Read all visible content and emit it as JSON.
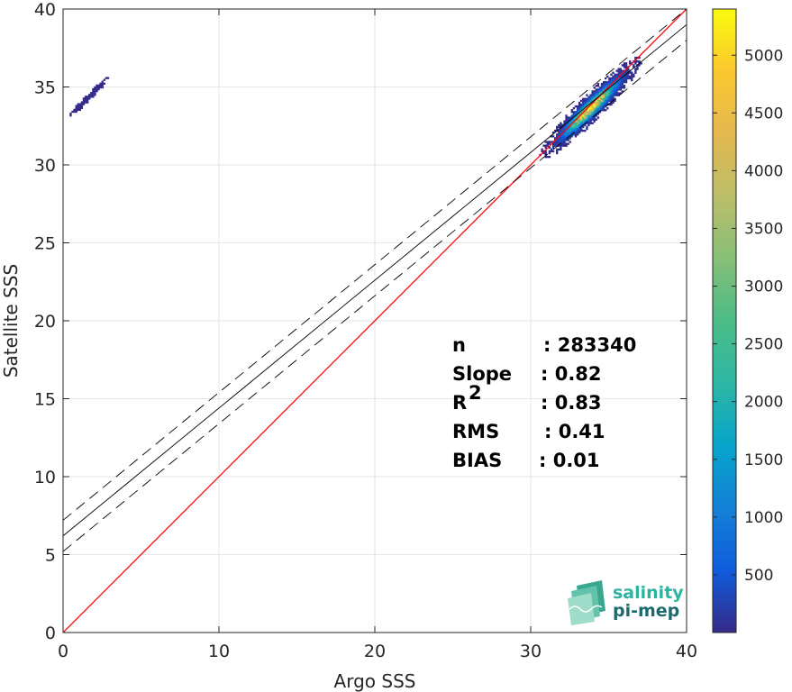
{
  "chart_data": {
    "type": "heatmap",
    "title": "",
    "xlabel": "Argo SSS",
    "ylabel": "Satellite SSS",
    "xlim": [
      0,
      40
    ],
    "ylim": [
      0,
      40
    ],
    "xticks": [
      0,
      10,
      20,
      30,
      40
    ],
    "yticks": [
      0,
      5,
      10,
      15,
      20,
      25,
      30,
      35,
      40
    ],
    "grid": true,
    "colorbar": {
      "range": [
        0,
        5400
      ],
      "ticks": [
        500,
        1000,
        1500,
        2000,
        2500,
        3000,
        3500,
        4000,
        4500,
        5000
      ],
      "colormap": "parula"
    },
    "density_clusters": [
      {
        "center": [
          33.8,
          33.6
        ],
        "spread_along": 2.6,
        "spread_across": 0.45,
        "peak": 5400
      },
      {
        "center": [
          1.6,
          34.3
        ],
        "spread_along": 1.0,
        "spread_across": 0.12,
        "peak": 40
      }
    ],
    "lines": [
      {
        "name": "one-to-one",
        "style": "solid",
        "color": "#ff0000",
        "slope": 1.0,
        "intercept": 0.0
      },
      {
        "name": "regression",
        "style": "solid",
        "color": "#000000",
        "slope": 0.82,
        "intercept": 6.2
      },
      {
        "name": "upper-bound",
        "style": "dashed",
        "color": "#000000",
        "slope": 0.82,
        "intercept": 7.2
      },
      {
        "name": "lower-bound",
        "style": "dashed",
        "color": "#000000",
        "slope": 0.82,
        "intercept": 5.2
      }
    ],
    "stats": [
      {
        "label": "n",
        "sup": "",
        "value": ": 283340"
      },
      {
        "label": "Slope",
        "sup": "",
        "value": ": 0.82"
      },
      {
        "label": "R",
        "sup": "2",
        "value": ": 0.83"
      },
      {
        "label": "RMS",
        "sup": "",
        "value": ": 0.41"
      },
      {
        "label": "BIAS",
        "sup": "",
        "value": ": 0.01"
      }
    ]
  },
  "logo": {
    "line1": "salinity",
    "line2": "pi-mep",
    "color1": "#2ab5a0",
    "color2": "#1d6a6e"
  }
}
